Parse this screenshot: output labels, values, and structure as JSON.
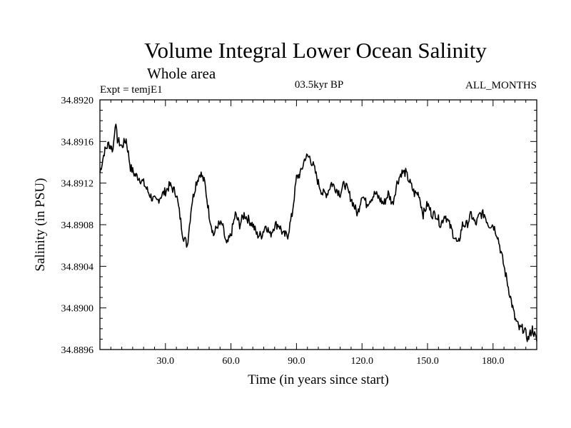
{
  "chart_data": {
    "type": "line",
    "title": "Volume Integral Lower Ocean Salinity",
    "subtitle": "Whole area",
    "expt_label": "Expt = temjE1",
    "period_label": "03.5kyr BP",
    "months_label": "ALL_MONTHS",
    "xlabel": "Time (in years since start)",
    "ylabel": "Salinity (in PSU)",
    "xlim": [
      0,
      200
    ],
    "ylim": [
      34.8896,
      34.892
    ],
    "x_ticks": [
      30,
      60,
      90,
      120,
      150,
      180
    ],
    "x_tick_labels": [
      "30.0",
      "60.0",
      "90.0",
      "120.0",
      "150.0",
      "180.0"
    ],
    "y_ticks": [
      34.8896,
      34.89,
      34.8904,
      34.8908,
      34.8912,
      34.8916,
      34.892
    ],
    "y_tick_labels": [
      "34.8896",
      "34.8900",
      "34.8904",
      "34.8908",
      "34.8912",
      "34.8916",
      "34.8920"
    ],
    "series": [
      {
        "name": "salinity",
        "x": [
          0,
          2,
          4,
          6,
          7,
          8,
          10,
          12,
          14,
          16,
          18,
          20,
          22,
          24,
          26,
          28,
          30,
          32,
          35,
          38,
          40,
          42,
          44,
          46,
          48,
          50,
          52,
          54,
          56,
          58,
          60,
          62,
          64,
          66,
          68,
          70,
          72,
          74,
          76,
          78,
          80,
          82,
          84,
          86,
          88,
          90,
          92,
          94,
          96,
          98,
          100,
          102,
          104,
          106,
          108,
          110,
          112,
          114,
          116,
          118,
          120,
          122,
          124,
          126,
          128,
          130,
          132,
          134,
          136,
          138,
          140,
          142,
          144,
          146,
          148,
          150,
          152,
          154,
          156,
          158,
          160,
          162,
          164,
          166,
          168,
          170,
          172,
          174,
          176,
          178,
          180,
          182,
          184,
          186,
          188,
          190,
          192,
          194,
          196,
          198,
          200
        ],
        "values": [
          34.8913,
          34.8915,
          34.89158,
          34.89152,
          34.89178,
          34.89162,
          34.89155,
          34.89162,
          34.89135,
          34.89128,
          34.89125,
          34.8912,
          34.89112,
          34.89105,
          34.89102,
          34.89108,
          34.89112,
          34.89118,
          34.8911,
          34.8907,
          34.8906,
          34.891,
          34.8912,
          34.8913,
          34.8912,
          34.8909,
          34.8907,
          34.8908,
          34.8908,
          34.8906,
          34.8907,
          34.8909,
          34.8908,
          34.8909,
          34.89085,
          34.8908,
          34.8907,
          34.8907,
          34.8908,
          34.8907,
          34.8908,
          34.8908,
          34.8907,
          34.8907,
          34.8909,
          34.89125,
          34.8913,
          34.89145,
          34.89145,
          34.89135,
          34.8912,
          34.8911,
          34.8911,
          34.8912,
          34.89115,
          34.8911,
          34.8912,
          34.8911,
          34.891,
          34.8909,
          34.8911,
          34.891,
          34.89105,
          34.8911,
          34.89105,
          34.891,
          34.8911,
          34.891,
          34.8912,
          34.8913,
          34.8913,
          34.8912,
          34.8911,
          34.8911,
          34.8909,
          34.891,
          34.8909,
          34.8909,
          34.8908,
          34.8909,
          34.8908,
          34.8907,
          34.8906,
          34.8908,
          34.8908,
          34.8909,
          34.8908,
          34.8909,
          34.8909,
          34.8908,
          34.8908,
          34.8907,
          34.8905,
          34.8903,
          34.8901,
          34.8899,
          34.8898,
          34.8898,
          34.8897,
          34.8898,
          34.88968
        ]
      }
    ]
  }
}
